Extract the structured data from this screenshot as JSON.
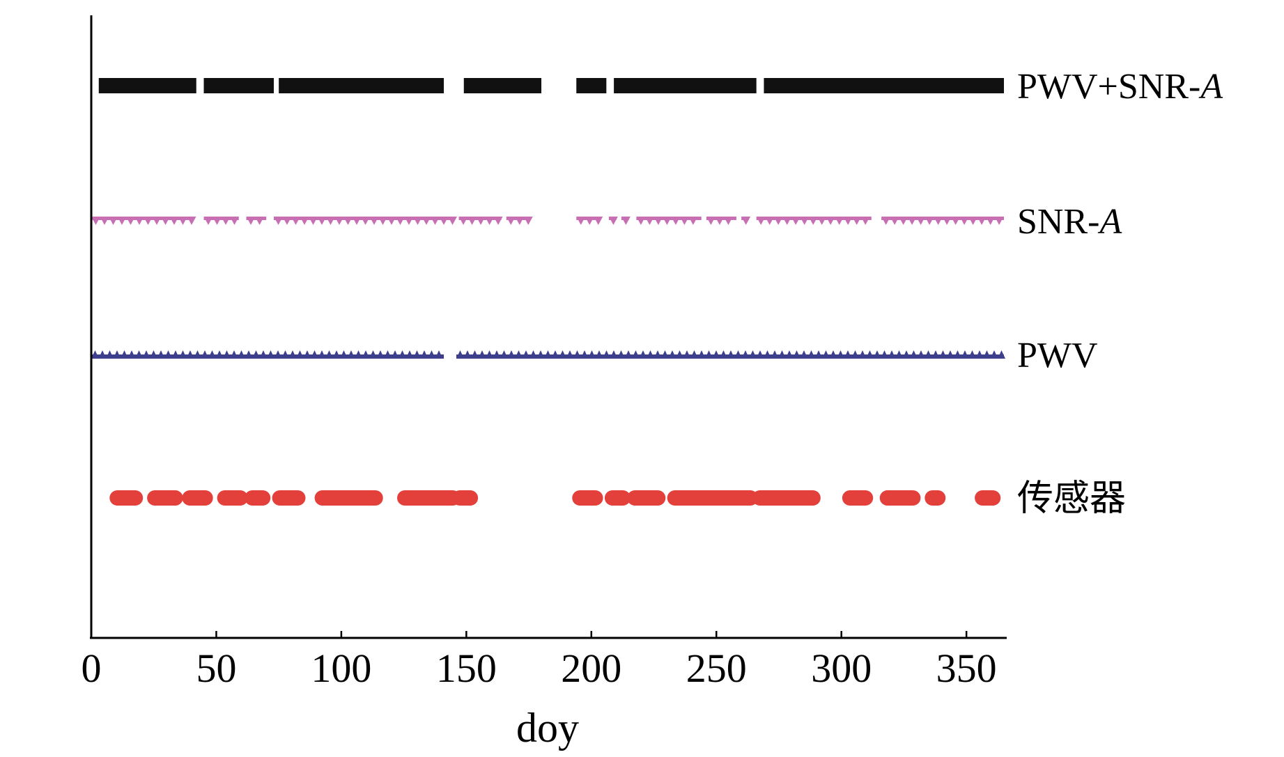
{
  "chart_data": {
    "type": "timeline",
    "title": "",
    "xlabel": "doy",
    "ylabel": "",
    "xlim": [
      0,
      365
    ],
    "xticks": [
      0,
      50,
      100,
      150,
      200,
      250,
      300,
      350
    ],
    "grid": false,
    "series": [
      {
        "name": "PWV+SNR-A",
        "label_main": "PWV+SNR-",
        "label_italic": "A",
        "color": "#111111",
        "marker": "bar",
        "segments": [
          [
            3,
            42
          ],
          [
            45,
            73
          ],
          [
            75,
            141
          ],
          [
            149,
            180
          ],
          [
            194,
            206
          ],
          [
            209,
            266
          ],
          [
            269,
            365
          ]
        ]
      },
      {
        "name": "SNR-A",
        "label_main": "SNR-",
        "label_italic": "A",
        "color": "#c86fb4",
        "marker": "triangle-down",
        "segments": [
          [
            0,
            41
          ],
          [
            45,
            59
          ],
          [
            62,
            70
          ],
          [
            73,
            145
          ],
          [
            147,
            164
          ],
          [
            166,
            175
          ],
          [
            194,
            203
          ],
          [
            207,
            210
          ],
          [
            212,
            215
          ],
          [
            218,
            244
          ],
          [
            246,
            258
          ],
          [
            260,
            263
          ],
          [
            266,
            312
          ],
          [
            316,
            365
          ]
        ]
      },
      {
        "name": "PWV",
        "label_main": "PWV",
        "label_italic": "",
        "color": "#3d3f8c",
        "marker": "triangle-up",
        "segments": [
          [
            0,
            141
          ],
          [
            146,
            365
          ]
        ]
      },
      {
        "name": "传感器",
        "label_main": "传感器",
        "label_italic": "",
        "color": "#e3403c",
        "marker": "circle",
        "segments": [
          [
            9,
            19
          ],
          [
            24,
            35
          ],
          [
            38,
            47
          ],
          [
            52,
            61
          ],
          [
            63,
            70
          ],
          [
            74,
            84
          ],
          [
            91,
            115
          ],
          [
            124,
            146
          ],
          [
            146,
            153
          ],
          [
            194,
            203
          ],
          [
            207,
            214
          ],
          [
            216,
            228
          ],
          [
            232,
            265
          ],
          [
            266,
            290
          ],
          [
            302,
            311
          ],
          [
            317,
            330
          ],
          [
            335,
            340
          ],
          [
            355,
            362
          ]
        ]
      }
    ]
  }
}
